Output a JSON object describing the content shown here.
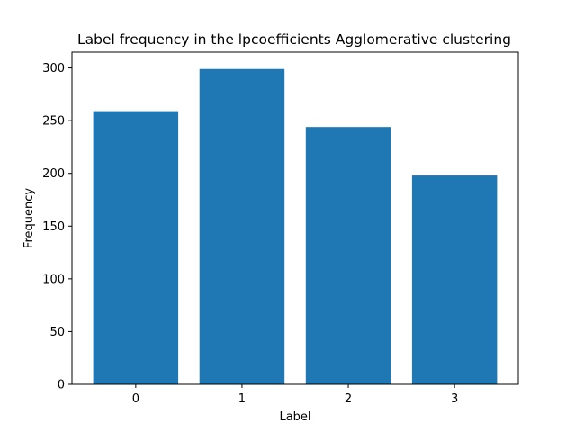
{
  "chart_data": {
    "type": "bar",
    "title": "Label frequency in the lpcoefficients Agglomerative clustering",
    "xlabel": "Label",
    "ylabel": "Frequency",
    "categories": [
      "0",
      "1",
      "2",
      "3"
    ],
    "values": [
      259,
      299,
      244,
      198
    ],
    "ylim": [
      0,
      315
    ],
    "yticks": [
      0,
      50,
      100,
      150,
      200,
      250,
      300
    ],
    "bar_color": "#1f77b4",
    "grid": false,
    "legend": "none"
  }
}
